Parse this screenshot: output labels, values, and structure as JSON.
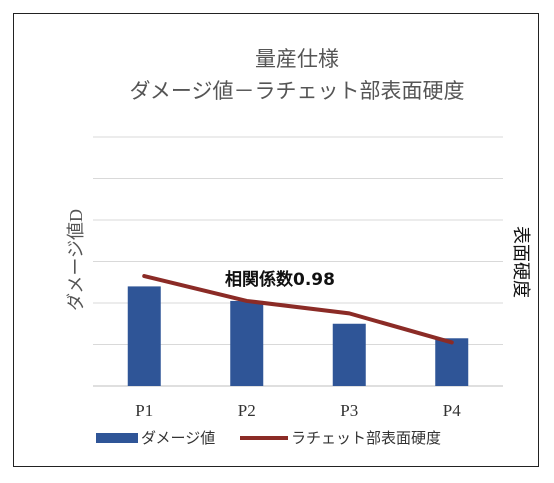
{
  "chart_data": {
    "type": "bar",
    "title_lines": [
      "量産仕様",
      "ダメージ値－ラチェット部表面硬度"
    ],
    "ylabel_left": "ダメージ値D",
    "ylabel_right": "表面硬度",
    "annotation": "相関係数0.98",
    "categories": [
      "P1",
      "P2",
      "P3",
      "P4"
    ],
    "series": [
      {
        "name": "ダメージ値",
        "kind": "bar",
        "values": [
          0.48,
          0.41,
          0.3,
          0.23
        ],
        "color": "#2f5597"
      },
      {
        "name": "ラチェット部表面硬度",
        "kind": "line",
        "values": [
          0.53,
          0.41,
          0.35,
          0.21
        ],
        "color": "#8b2b26"
      }
    ],
    "ylim": [
      0,
      1.2
    ],
    "grid": true,
    "axis_tick_labels_shown": false,
    "legend_position": "bottom"
  }
}
